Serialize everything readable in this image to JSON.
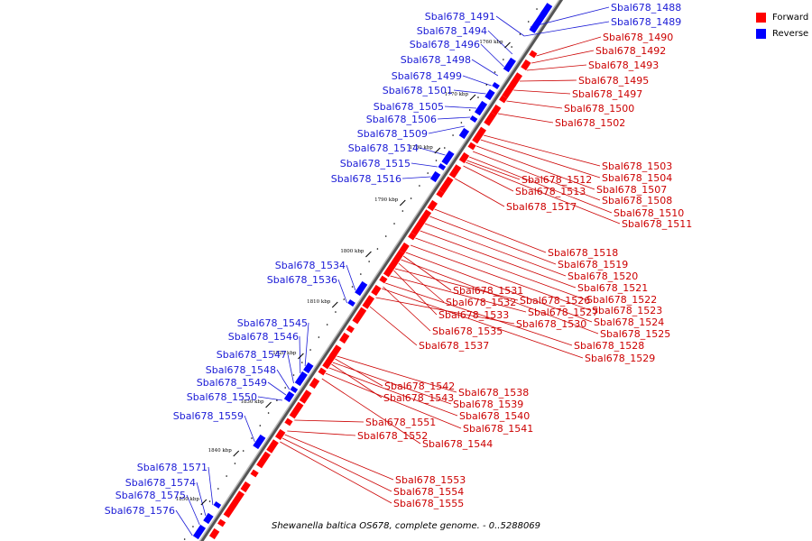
{
  "caption": "Shewanella baltica OS678, complete genome. - 0..5288069",
  "legend": [
    {
      "label": "Forward",
      "color": "#ff0000"
    },
    {
      "label": "Reverse",
      "color": "#0000ff"
    }
  ],
  "colors": {
    "forward": "#ff0000",
    "reverse": "#0000ff",
    "forward_label": "#cc0000",
    "reverse_label": "#1a1ad6",
    "backbone": "#808080"
  },
  "ticks": [
    "1760 kbp",
    "1770 kbp",
    "1780 kbp",
    "1790 kbp",
    "1800 kbp",
    "1810 kbp",
    "1820 kbp",
    "1830 kbp",
    "1840 kbp",
    "1850 kbp"
  ],
  "reverse_genes": [
    "Sbal678_1491",
    "Sbal678_1494",
    "Sbal678_1496",
    "Sbal678_1498",
    "Sbal678_1499",
    "Sbal678_1501",
    "Sbal678_1505",
    "Sbal678_1506",
    "Sbal678_1509",
    "Sbal678_1514",
    "Sbal678_1515",
    "Sbal678_1516",
    "Sbal678_1534",
    "Sbal678_1536",
    "Sbal678_1545",
    "Sbal678_1546",
    "Sbal678_1547",
    "Sbal678_1548",
    "Sbal678_1549",
    "Sbal678_1550",
    "Sbal678_1559",
    "Sbal678_1571",
    "Sbal678_1574",
    "Sbal678_1575",
    "Sbal678_1576",
    "Sbal678_1488",
    "Sbal678_1489"
  ],
  "forward_genes": [
    "Sbal678_1490",
    "Sbal678_1492",
    "Sbal678_1493",
    "Sbal678_1495",
    "Sbal678_1497",
    "Sbal678_1500",
    "Sbal678_1502",
    "Sbal678_1503",
    "Sbal678_1504",
    "Sbal678_1507",
    "Sbal678_1508",
    "Sbal678_1510",
    "Sbal678_1511",
    "Sbal678_1512",
    "Sbal678_1513",
    "Sbal678_1517",
    "Sbal678_1518",
    "Sbal678_1519",
    "Sbal678_1520",
    "Sbal678_1521",
    "Sbal678_1522",
    "Sbal678_1523",
    "Sbal678_1524",
    "Sbal678_1525",
    "Sbal678_1526",
    "Sbal678_1527",
    "Sbal678_1528",
    "Sbal678_1529",
    "Sbal678_1530",
    "Sbal678_1531",
    "Sbal678_1532",
    "Sbal678_1533",
    "Sbal678_1535",
    "Sbal678_1537",
    "Sbal678_1538",
    "Sbal678_1539",
    "Sbal678_1540",
    "Sbal678_1541",
    "Sbal678_1542",
    "Sbal678_1543",
    "Sbal678_1544",
    "Sbal678_1551",
    "Sbal678_1552",
    "Sbal678_1553",
    "Sbal678_1554",
    "Sbal678_1555"
  ]
}
